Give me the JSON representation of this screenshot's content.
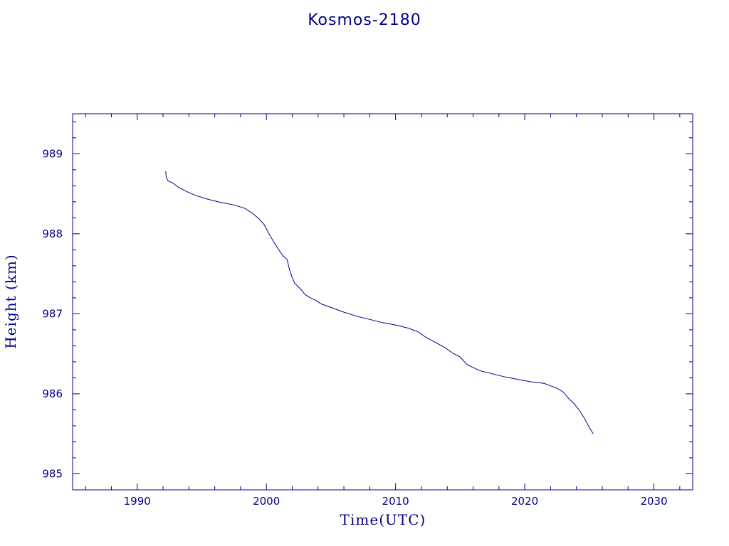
{
  "chart_data": {
    "type": "line",
    "title": "Kosmos-2180",
    "xlabel": "Time(UTC)",
    "ylabel": "Height (km)",
    "xlim": [
      1985,
      2033
    ],
    "ylim": [
      984.8,
      989.5
    ],
    "x_ticks": [
      1990,
      2000,
      2010,
      2020,
      2030
    ],
    "y_ticks": [
      985,
      986,
      987,
      988,
      989
    ],
    "x_tick_labels": [
      "1990",
      "2000",
      "2010",
      "2020",
      "2030"
    ],
    "y_tick_labels": [
      "985",
      "986",
      "987",
      "988",
      "989"
    ],
    "grid": false,
    "color": "#00008b",
    "series": [
      {
        "name": "",
        "x": [
          1992.2,
          1992.25,
          1992.4,
          1992.8,
          1993.2,
          1993.8,
          1994.5,
          1995.5,
          1996.5,
          1997.5,
          1998.3,
          1998.9,
          1999.4,
          1999.8,
          2000.2,
          2000.6,
          2001.0,
          2001.3,
          2001.6,
          2001.8,
          2002.0,
          2002.2,
          2002.4,
          2002.7,
          2003.0,
          2003.4,
          2003.8,
          2004.3,
          2005.0,
          2006.0,
          2007.0,
          2008.0,
          2009.0,
          2010.0,
          2011.0,
          2011.8,
          2012.3,
          2013.0,
          2013.8,
          2014.4,
          2015.0,
          2015.5,
          2016.0,
          2016.5,
          2017.5,
          2018.5,
          2019.5,
          2020.5,
          2021.5,
          2022.0,
          2022.5,
          2023.0,
          2023.4,
          2023.8,
          2024.2,
          2024.6,
          2025.0,
          2025.3
        ],
        "y": [
          988.78,
          988.7,
          988.66,
          988.63,
          988.58,
          988.53,
          988.48,
          988.43,
          988.39,
          988.36,
          988.32,
          988.26,
          988.19,
          988.12,
          988.0,
          987.89,
          987.79,
          987.72,
          987.68,
          987.55,
          987.45,
          987.38,
          987.35,
          987.3,
          987.24,
          987.2,
          987.17,
          987.12,
          987.08,
          987.02,
          986.97,
          986.93,
          986.89,
          986.86,
          986.82,
          986.77,
          986.71,
          986.65,
          986.58,
          986.51,
          986.46,
          986.37,
          986.33,
          986.29,
          986.25,
          986.21,
          986.18,
          986.15,
          986.13,
          986.1,
          986.07,
          986.02,
          985.94,
          985.88,
          985.8,
          985.7,
          985.58,
          985.5
        ]
      }
    ]
  }
}
